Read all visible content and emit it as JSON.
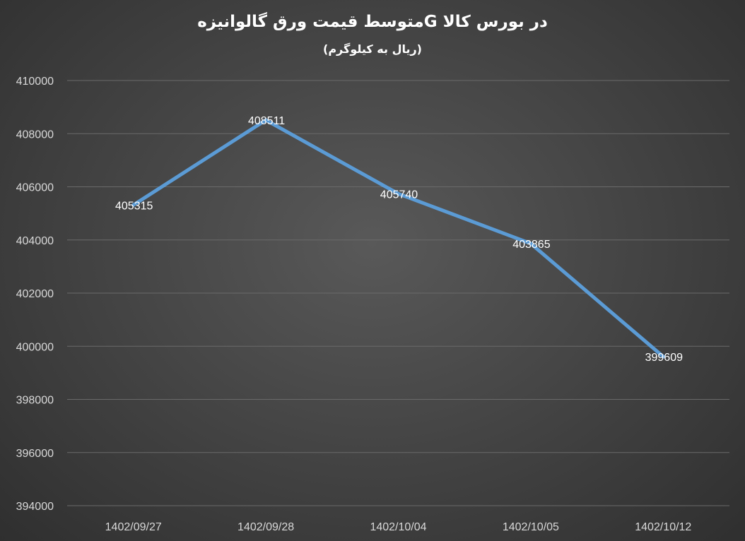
{
  "chart_data": {
    "type": "line",
    "title": "متوسط قیمت ورق گالوانیزهG در بورس کالا",
    "subtitle": "(ریال به کیلوگرم)",
    "xlabel": "",
    "ylabel": "",
    "categories": [
      "1402/09/27",
      "1402/09/28",
      "1402/10/04",
      "1402/10/05",
      "1402/10/12"
    ],
    "series": [
      {
        "values": [
          405315,
          408511,
          405740,
          403865,
          399609
        ]
      }
    ],
    "ylim": [
      394000,
      410000
    ],
    "yticks": [
      394000,
      396000,
      398000,
      400000,
      402000,
      404000,
      406000,
      408000,
      410000
    ],
    "grid": true,
    "legend": "none",
    "colors": {
      "line": "#5b9bd5",
      "grid": "#6a6a6a",
      "text": "#d9d9d9"
    }
  }
}
